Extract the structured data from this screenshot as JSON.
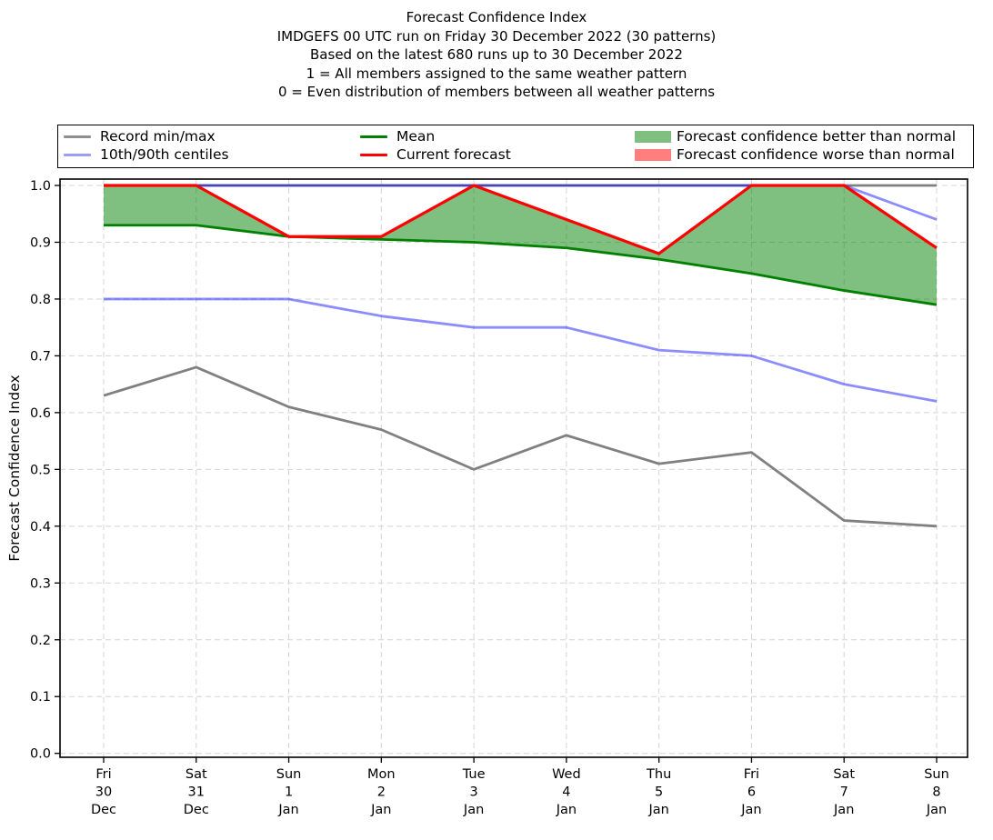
{
  "chart_data": {
    "type": "line",
    "title_lines": [
      "Forecast Confidence Index",
      "IMDGEFS 00 UTC run on Friday 30 December 2022 (30 patterns)",
      "Based on the latest 680 runs up to 30 December 2022",
      "1 = All members assigned to the same weather pattern",
      "0 = Even distribution of members between all weather patterns"
    ],
    "ylabel": "Forecast Confidence Index",
    "ylim": [
      0.0,
      1.0
    ],
    "ytick_labels": [
      "0.0",
      "0.1",
      "0.2",
      "0.3",
      "0.4",
      "0.5",
      "0.6",
      "0.7",
      "0.8",
      "0.9",
      "1.0"
    ],
    "grid": "dashed",
    "legend_position": "top",
    "categories": [
      [
        "Fri",
        "30",
        "Dec"
      ],
      [
        "Sat",
        "31",
        "Dec"
      ],
      [
        "Sun",
        "1",
        "Jan"
      ],
      [
        "Mon",
        "2",
        "Jan"
      ],
      [
        "Tue",
        "3",
        "Jan"
      ],
      [
        "Wed",
        "4",
        "Jan"
      ],
      [
        "Thu",
        "5",
        "Jan"
      ],
      [
        "Fri",
        "6",
        "Jan"
      ],
      [
        "Sat",
        "7",
        "Jan"
      ],
      [
        "Sun",
        "8",
        "Jan"
      ]
    ],
    "series": [
      {
        "id": "record-max",
        "name": "Record max",
        "color": "#808080",
        "line_width": 2.8,
        "values": [
          1.0,
          1.0,
          1.0,
          1.0,
          1.0,
          1.0,
          1.0,
          1.0,
          1.0,
          1.0
        ]
      },
      {
        "id": "centile-90",
        "name": "90th centile",
        "color": "rgba(0,0,255,0.45)",
        "line_width": 2.8,
        "values": [
          1.0,
          1.0,
          1.0,
          1.0,
          1.0,
          1.0,
          1.0,
          1.0,
          1.0,
          0.94
        ]
      },
      {
        "id": "centile-10",
        "name": "10th centile",
        "color": "rgba(0,0,255,0.45)",
        "line_width": 2.8,
        "values": [
          0.8,
          0.8,
          0.8,
          0.77,
          0.75,
          0.75,
          0.71,
          0.7,
          0.65,
          0.62
        ]
      },
      {
        "id": "record-min",
        "name": "Record min",
        "color": "#808080",
        "line_width": 2.8,
        "values": [
          0.63,
          0.68,
          0.61,
          0.57,
          0.5,
          0.56,
          0.51,
          0.53,
          0.41,
          0.4
        ]
      },
      {
        "id": "mean",
        "name": "Mean",
        "color": "#008000",
        "line_width": 2.8,
        "values": [
          0.93,
          0.93,
          0.91,
          0.905,
          0.9,
          0.89,
          0.87,
          0.845,
          0.815,
          0.79
        ]
      },
      {
        "id": "current",
        "name": "Current forecast",
        "color": "#ff0000",
        "line_width": 3.2,
        "values": [
          1.0,
          1.0,
          0.91,
          0.91,
          1.0,
          0.94,
          0.88,
          1.0,
          1.0,
          0.89
        ]
      }
    ],
    "fill_between": {
      "upper": "current",
      "lower": "mean",
      "color": "rgba(0,128,0,0.5)",
      "meaning": "Forecast confidence better than normal"
    },
    "legend": {
      "entries": [
        {
          "label": "Record min/max",
          "swatch": "line",
          "color": "#8f8f8f"
        },
        {
          "label": "10th/90th centiles",
          "swatch": "line",
          "color": "#9b9bf8"
        },
        {
          "label": "Mean",
          "swatch": "line",
          "color": "#008000"
        },
        {
          "label": "Current forecast",
          "swatch": "line",
          "color": "#ff0000"
        },
        {
          "label": "Forecast confidence better than normal",
          "swatch": "patch",
          "color": "#7fbf7f"
        },
        {
          "label": "Forecast confidence worse than normal",
          "swatch": "patch",
          "color": "#ff7f7f"
        }
      ]
    },
    "colors": {
      "grid": "#d4d4d4",
      "spine": "#000000",
      "text": "#000000"
    }
  }
}
